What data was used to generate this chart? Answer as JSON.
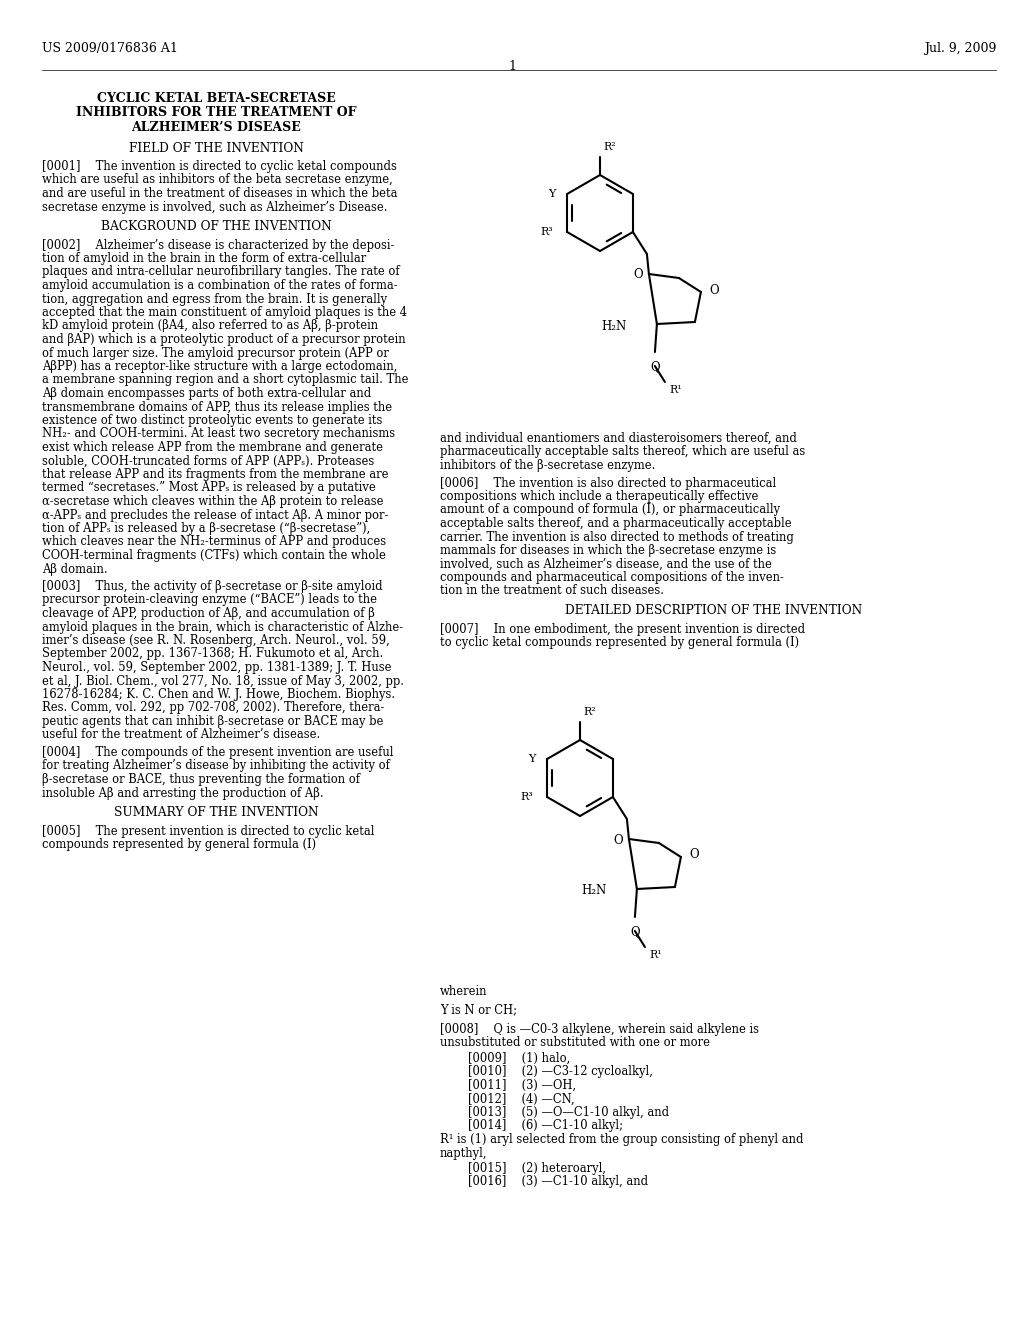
{
  "header_left": "US 2009/0176836 A1",
  "header_right": "Jul. 9, 2009",
  "page_number": "1",
  "title_lines": [
    "CYCLIC KETAL BETA-SECRETASE",
    "INHIBITORS FOR THE TREATMENT OF",
    "ALZHEIMER’S DISEASE"
  ],
  "section1_header": "FIELD OF THE INVENTION",
  "section1_text": [
    "[0001]  The invention is directed to cyclic ketal compounds",
    "which are useful as inhibitors of the beta secretase enzyme,",
    "and are useful in the treatment of diseases in which the beta",
    "secretase enzyme is involved, such as Alzheimer’s Disease."
  ],
  "section2_header": "BACKGROUND OF THE INVENTION",
  "section2_text": [
    "[0002]  Alzheimer’s disease is characterized by the deposi-",
    "tion of amyloid in the brain in the form of extra-cellular",
    "plaques and intra-cellular neurofibrillary tangles. The rate of",
    "amyloid accumulation is a combination of the rates of forma-",
    "tion, aggregation and egress from the brain. It is generally",
    "accepted that the main constituent of amyloid plaques is the 4",
    "kD amyloid protein (βA4, also referred to as Aβ, β-protein",
    "and βAP) which is a proteolytic product of a precursor protein",
    "of much larger size. The amyloid precursor protein (APP or",
    "AβPP) has a receptor-like structure with a large ectodomain,",
    "a membrane spanning region and a short cytoplasmic tail. The",
    "Aβ domain encompasses parts of both extra-cellular and",
    "transmembrane domains of APP, thus its release implies the",
    "existence of two distinct proteolytic events to generate its",
    "NH₂- and COOH-termini. At least two secretory mechanisms",
    "exist which release APP from the membrane and generate",
    "soluble, COOH-truncated forms of APP (APPₛ). Proteases",
    "that release APP and its fragments from the membrane are",
    "termed “secretases.” Most APPₛ is released by a putative",
    "α-secretase which cleaves within the Aβ protein to release",
    "α-APPₛ and precludes the release of intact Aβ. A minor por-",
    "tion of APPₛ is released by a β-secretase (“β-secretase”),",
    "which cleaves near the NH₂-terminus of APP and produces",
    "COOH-terminal fragments (CTFs) which contain the whole",
    "Aβ domain."
  ],
  "section3_text": [
    "[0003]  Thus, the activity of β-secretase or β-site amyloid",
    "precursor protein-cleaving enzyme (“BACE”) leads to the",
    "cleavage of APP, production of Aβ, and accumulation of β",
    "amyloid plaques in the brain, which is characteristic of Alzhe-",
    "imer’s disease (see R. N. Rosenberg, Arch. Neurol., vol. 59,",
    "September 2002, pp. 1367-1368; H. Fukumoto et al, Arch.",
    "Neurol., vol. 59, September 2002, pp. 1381-1389; J. T. Huse",
    "et al, J. Biol. Chem., vol 277, No. 18, issue of May 3, 2002, pp.",
    "16278-16284; K. C. Chen and W. J. Howe, Biochem. Biophys.",
    "Res. Comm, vol. 292, pp 702-708, 2002). Therefore, thera-",
    "peutic agents that can inhibit β-secretase or BACE may be",
    "useful for the treatment of Alzheimer’s disease."
  ],
  "section4_text": [
    "[0004]  The compounds of the present invention are useful",
    "for treating Alzheimer’s disease by inhibiting the activity of",
    "β-secretase or BACE, thus preventing the formation of",
    "insoluble Aβ and arresting the production of Aβ."
  ],
  "section5_header": "SUMMARY OF THE INVENTION",
  "section5_text": [
    "[0005]  The present invention is directed to cyclic ketal",
    "compounds represented by general formula (I)"
  ],
  "right_p1": [
    "and individual enantiomers and diasteroisomers thereof, and",
    "pharmaceutically acceptable salts thereof, which are useful as",
    "inhibitors of the β-secretase enzyme."
  ],
  "right_p2": [
    "[0006]  The invention is also directed to pharmaceutical",
    "compositions which include a therapeutically effective",
    "amount of a compound of formula (I), or pharmaceutically",
    "acceptable salts thereof, and a pharmaceutically acceptable",
    "carrier. The invention is also directed to methods of treating",
    "mammals for diseases in which the β-secretase enzyme is",
    "involved, such as Alzheimer’s disease, and the use of the",
    "compounds and pharmaceutical compositions of the inven-",
    "tion in the treatment of such diseases."
  ],
  "section6_header": "DETAILED DESCRIPTION OF THE INVENTION",
  "section6_text": [
    "[0007]  In one embodiment, the present invention is directed",
    "to cyclic ketal compounds represented by general formula (I)"
  ],
  "wherein_text": "wherein",
  "y_def": "Y is N or CH;",
  "q_def_line1": "[0008]  Q is —C0-3 alkylene, wherein said alkylene is",
  "q_def_line2": "unsubstituted or substituted with one or more",
  "items": [
    "[0009]  (1) halo,",
    "[0010]  (2) —C3-12 cycloalkyl,",
    "[0011]  (3) —OH,",
    "[0012]  (4) —CN,",
    "[0013]  (5) —O—C1-10 alkyl, and",
    "[0014]  (6) —C1-10 alkyl;"
  ],
  "r1_line1": "R¹ is (1) aryl selected from the group consisting of phenyl and",
  "r1_line2": "napthyl,",
  "items2": [
    "[0015]  (2) heteroaryl,",
    "[0016]  (3) —C1-10 alkyl, and"
  ]
}
